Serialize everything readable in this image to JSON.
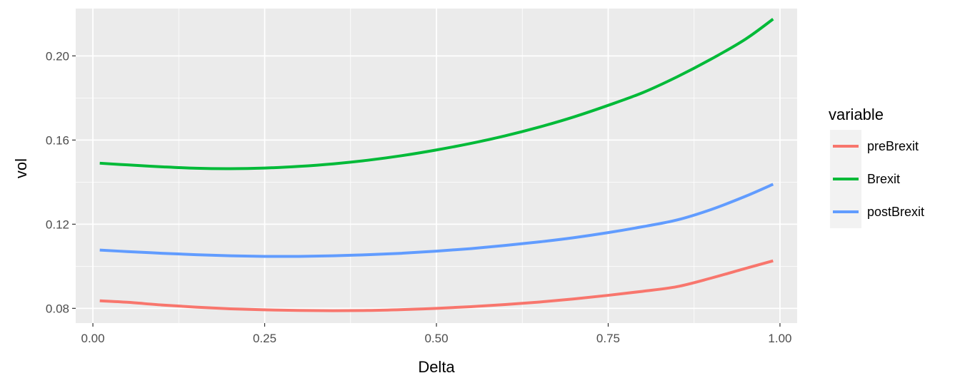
{
  "chart_data": {
    "type": "line",
    "xlabel": "Delta",
    "ylabel": "vol",
    "xlim": [
      -0.025,
      1.025
    ],
    "ylim": [
      0.073,
      0.2225
    ],
    "x_ticks": [
      0.0,
      0.25,
      0.5,
      0.75,
      1.0
    ],
    "x_tick_labels": [
      "0.00",
      "0.25",
      "0.50",
      "0.75",
      "1.00"
    ],
    "y_ticks": [
      0.08,
      0.12,
      0.16,
      0.2
    ],
    "y_tick_labels": [
      "0.08",
      "0.12",
      "0.16",
      "0.20"
    ],
    "grid": true,
    "legend": {
      "title": "variable",
      "placement": "right"
    },
    "x": [
      0.01,
      0.05,
      0.1,
      0.15,
      0.2,
      0.25,
      0.3,
      0.35,
      0.4,
      0.45,
      0.5,
      0.55,
      0.6,
      0.65,
      0.7,
      0.75,
      0.8,
      0.85,
      0.9,
      0.95,
      0.99
    ],
    "series": [
      {
        "name": "preBrexit",
        "color": "#F8766D",
        "values": [
          0.0836,
          0.0829,
          0.0816,
          0.0806,
          0.0798,
          0.0793,
          0.079,
          0.0789,
          0.079,
          0.0794,
          0.08,
          0.0808,
          0.0818,
          0.083,
          0.0845,
          0.0862,
          0.0881,
          0.0903,
          0.0944,
          0.099,
          0.1026
        ]
      },
      {
        "name": "Brexit",
        "color": "#00BA38",
        "values": [
          0.149,
          0.1482,
          0.1473,
          0.1466,
          0.1464,
          0.1467,
          0.1475,
          0.1487,
          0.1504,
          0.1526,
          0.1553,
          0.1584,
          0.162,
          0.1662,
          0.171,
          0.1765,
          0.1825,
          0.19,
          0.1985,
          0.208,
          0.2175
        ]
      },
      {
        "name": "postBrexit",
        "color": "#619CFF",
        "values": [
          0.1077,
          0.107,
          0.1062,
          0.1055,
          0.105,
          0.1047,
          0.1047,
          0.105,
          0.1055,
          0.1062,
          0.1072,
          0.1084,
          0.1099,
          0.1116,
          0.1136,
          0.116,
          0.1188,
          0.122,
          0.127,
          0.1333,
          0.139
        ]
      }
    ]
  }
}
